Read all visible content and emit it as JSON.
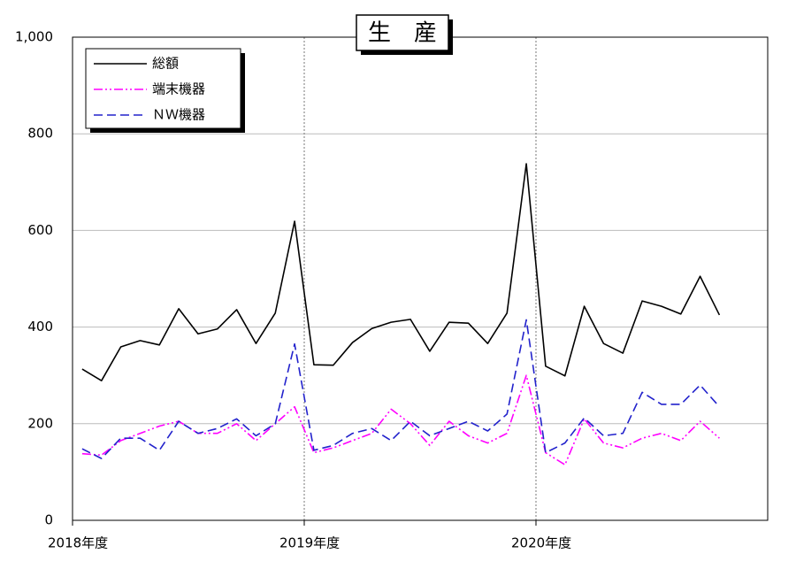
{
  "chart_data": {
    "type": "line",
    "title": "生　産",
    "x": [
      0.5,
      1.5,
      2.5,
      3.5,
      4.5,
      5.5,
      6.5,
      7.5,
      8.5,
      9.5,
      10.5,
      11.5,
      12.5,
      13.5,
      14.5,
      15.5,
      16.5,
      17.5,
      18.5,
      19.5,
      20.5,
      21.5,
      22.5,
      23.5,
      24.5,
      25.5,
      26.5,
      27.5,
      28.5,
      29.5,
      30.5,
      31.5,
      32.5,
      33.5
    ],
    "series": [
      {
        "name": "総額",
        "color": "#000000",
        "dash": "",
        "values": [
          313,
          289,
          359,
          372,
          363,
          438,
          386,
          396,
          436,
          366,
          429,
          619,
          322,
          321,
          368,
          397,
          410,
          416,
          350,
          410,
          408,
          366,
          429,
          738,
          319,
          299,
          443,
          366,
          346,
          454,
          443,
          427,
          505,
          425
        ]
      },
      {
        "name": "端末機器",
        "color": "#ff00ff",
        "dash": "10 3 2 3 2 3",
        "values": [
          138,
          135,
          165,
          180,
          195,
          205,
          180,
          180,
          200,
          165,
          200,
          235,
          140,
          150,
          165,
          180,
          230,
          200,
          155,
          205,
          175,
          160,
          180,
          300,
          140,
          115,
          210,
          160,
          150,
          170,
          180,
          165,
          205,
          170
        ]
      },
      {
        "name": "ＮＷ機器",
        "color": "#2222cc",
        "dash": "10 5",
        "values": [
          148,
          128,
          170,
          170,
          145,
          205,
          180,
          190,
          210,
          175,
          200,
          365,
          145,
          155,
          180,
          190,
          165,
          205,
          175,
          190,
          205,
          185,
          220,
          415,
          140,
          160,
          212,
          175,
          180,
          265,
          240,
          240,
          280,
          235
        ]
      }
    ],
    "xlim": [
      0,
      36
    ],
    "xticks": [
      {
        "value": 0,
        "label": "2018年度"
      },
      {
        "value": 12,
        "label": "2019年度"
      },
      {
        "value": 24,
        "label": "2020年度"
      }
    ],
    "ylim": [
      0,
      1000
    ],
    "yticks": [
      0,
      200,
      400,
      600,
      800,
      {
        "value": 1000,
        "label": "1,000"
      }
    ],
    "grid": true
  }
}
